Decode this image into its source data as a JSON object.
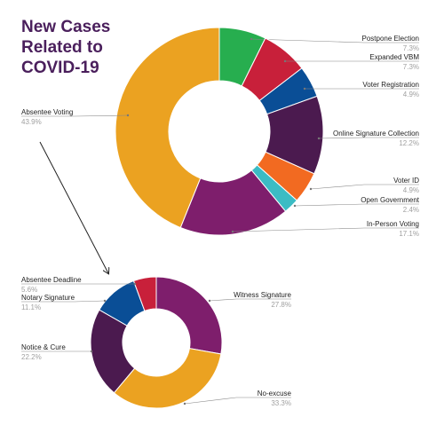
{
  "title_lines": [
    "New Cases",
    "Related to",
    "COVID-19"
  ],
  "colors": {
    "title": "#4a1f5c",
    "leader": "#888888",
    "arrow": "#222222"
  },
  "chart_data": [
    {
      "type": "pie",
      "variant": "donut",
      "start_angle_deg": 0,
      "slices": [
        {
          "label": "Postpone Election",
          "percent": "7.3%",
          "value": 7.3,
          "color": "#27ae4f"
        },
        {
          "label": "Expanded VBM",
          "percent": "7.3%",
          "value": 7.3,
          "color": "#c8203a"
        },
        {
          "label": "Voter Registration",
          "percent": "4.9%",
          "value": 4.9,
          "color": "#0a4e96"
        },
        {
          "label": "Online Signature Collection",
          "percent": "12.2%",
          "value": 12.2,
          "color": "#4b1a4f"
        },
        {
          "label": "Voter ID",
          "percent": "4.9%",
          "value": 4.9,
          "color": "#f26a21"
        },
        {
          "label": "Open Government",
          "percent": "2.4%",
          "value": 2.4,
          "color": "#3bbcc4"
        },
        {
          "label": "In-Person Voting",
          "percent": "17.1%",
          "value": 17.1,
          "color": "#7e1e6c"
        },
        {
          "label": "Absentee Voting",
          "percent": "43.9%",
          "value": 43.9,
          "color": "#eba221"
        }
      ]
    },
    {
      "type": "pie",
      "variant": "donut",
      "start_angle_deg": 0,
      "slices": [
        {
          "label": "Witness Signature",
          "percent": "27.8%",
          "value": 27.8,
          "color": "#7e1e6c"
        },
        {
          "label": "No-excuse",
          "percent": "33.3%",
          "value": 33.3,
          "color": "#eba221"
        },
        {
          "label": "Notice & Cure",
          "percent": "22.2%",
          "value": 22.2,
          "color": "#4b1a4f"
        },
        {
          "label": "Notary Signature",
          "percent": "11.1%",
          "value": 11.1,
          "color": "#0a4e96"
        },
        {
          "label": "Absentee Deadline",
          "percent": "5.6%",
          "value": 5.6,
          "color": "#c8203a"
        }
      ]
    }
  ]
}
